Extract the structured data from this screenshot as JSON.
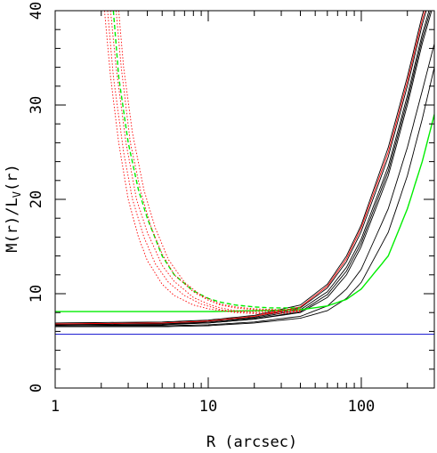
{
  "chart_data": {
    "type": "line",
    "title": "",
    "xlabel": "R (arcsec)",
    "ylabel": "M(r)/L_V(r)",
    "ylabel_parts": {
      "main": "M(r)/L",
      "sub": "V",
      "tail": "(r)"
    },
    "xscale": "log",
    "xlim": [
      1,
      300
    ],
    "ylim": [
      0,
      40
    ],
    "grid": false,
    "legend": "none",
    "x_ticks": [
      {
        "value": 1,
        "label": "1"
      },
      {
        "value": 10,
        "label": "10"
      },
      {
        "value": 100,
        "label": "100"
      }
    ],
    "y_ticks": [
      {
        "value": 0,
        "label": "0"
      },
      {
        "value": 10,
        "label": "10"
      },
      {
        "value": 20,
        "label": "20"
      },
      {
        "value": 30,
        "label": "30"
      },
      {
        "value": 40,
        "label": "40"
      }
    ],
    "series": [
      {
        "color": "#000000",
        "style": "solid",
        "x": [
          1,
          5,
          10,
          20,
          40,
          60,
          80,
          100,
          150,
          200,
          250,
          300
        ],
        "y": [
          6.6,
          6.7,
          6.9,
          7.3,
          8.0,
          9.6,
          12.0,
          15.0,
          22.5,
          30.0,
          36.5,
          41.0
        ]
      },
      {
        "color": "#000000",
        "style": "solid",
        "x": [
          1,
          5,
          10,
          20,
          40,
          60,
          80,
          100,
          150,
          200,
          250,
          300
        ],
        "y": [
          6.7,
          6.8,
          7.0,
          7.4,
          8.3,
          10.2,
          12.8,
          15.8,
          23.5,
          31.0,
          37.5,
          42.0
        ]
      },
      {
        "color": "#000000",
        "style": "solid",
        "x": [
          1,
          5,
          10,
          20,
          40,
          60,
          80,
          100,
          150,
          200,
          250,
          300
        ],
        "y": [
          6.8,
          6.9,
          7.1,
          7.5,
          8.5,
          10.6,
          13.4,
          16.6,
          24.5,
          32.0,
          38.5,
          43.0
        ]
      },
      {
        "color": "#000000",
        "style": "solid",
        "x": [
          1,
          5,
          10,
          20,
          40,
          60,
          80,
          100,
          150,
          200,
          250,
          300
        ],
        "y": [
          6.9,
          7.0,
          7.2,
          7.7,
          8.8,
          11.0,
          14.0,
          17.3,
          25.5,
          33.0,
          39.5,
          44.0
        ]
      },
      {
        "color": "#000000",
        "style": "solid",
        "x": [
          1,
          5,
          10,
          20,
          40,
          60,
          80,
          100,
          150,
          200,
          250,
          300
        ],
        "y": [
          6.6,
          6.6,
          6.7,
          7.0,
          7.6,
          8.7,
          10.5,
          12.6,
          19.0,
          25.5,
          31.5,
          36.5
        ]
      },
      {
        "color": "#000000",
        "style": "solid",
        "x": [
          1,
          5,
          10,
          20,
          40,
          60,
          80,
          100,
          150,
          200,
          250,
          300
        ],
        "y": [
          6.5,
          6.5,
          6.6,
          6.9,
          7.4,
          8.2,
          9.5,
          11.2,
          16.5,
          22.5,
          28.5,
          34.0
        ]
      },
      {
        "color": "#000000",
        "style": "solid",
        "x": [
          1,
          5,
          10,
          20,
          40,
          60,
          80,
          100,
          150,
          200,
          250,
          300
        ],
        "y": [
          6.7,
          6.8,
          6.9,
          7.3,
          8.1,
          9.9,
          12.4,
          15.4,
          23.0,
          30.5,
          37.0,
          41.5
        ]
      },
      {
        "color": "#ff0000",
        "style": "solid",
        "x": [
          1,
          5,
          10,
          20,
          40,
          60,
          80,
          100,
          150,
          200,
          250,
          300
        ],
        "y": [
          6.8,
          6.9,
          7.1,
          7.6,
          8.6,
          10.8,
          13.7,
          17.0,
          25.0,
          32.5,
          39.0,
          43.5
        ]
      },
      {
        "color": "#00ee00",
        "style": "solid",
        "x": [
          1,
          10,
          20,
          40,
          60,
          80,
          100,
          150,
          200,
          250,
          300
        ],
        "y": [
          8.1,
          8.1,
          8.2,
          8.3,
          8.7,
          9.4,
          10.5,
          14.0,
          19.0,
          24.0,
          29.0
        ]
      },
      {
        "color": "#00ee00",
        "style": "dashed",
        "x": [
          2.4,
          2.6,
          3,
          3.5,
          4,
          5,
          6,
          8,
          10,
          12,
          15,
          20,
          25,
          30,
          40
        ],
        "y": [
          40,
          33,
          26,
          21,
          18,
          14,
          12,
          10.3,
          9.5,
          9.1,
          8.8,
          8.6,
          8.5,
          8.5,
          8.5
        ]
      },
      {
        "color": "#ff0000",
        "style": "dotted",
        "x": [
          2.1,
          2.3,
          2.6,
          3,
          3.5,
          4,
          5,
          6,
          8,
          10,
          15,
          20,
          30,
          40
        ],
        "y": [
          40,
          33,
          26,
          20,
          16,
          13.5,
          11,
          9.8,
          8.8,
          8.4,
          8.0,
          7.9,
          7.9,
          8.1
        ]
      },
      {
        "color": "#ff0000",
        "style": "dotted",
        "x": [
          2.2,
          2.4,
          2.8,
          3.2,
          3.8,
          4.5,
          5.5,
          7,
          9,
          12,
          15,
          20,
          30,
          40
        ],
        "y": [
          40,
          33,
          25,
          20,
          16,
          13.2,
          11.2,
          9.8,
          8.9,
          8.3,
          8.1,
          8.0,
          8.0,
          8.2
        ]
      },
      {
        "color": "#ff0000",
        "style": "dotted",
        "x": [
          2.3,
          2.5,
          2.9,
          3.4,
          4,
          5,
          6,
          8,
          10,
          12,
          15,
          20,
          30,
          40
        ],
        "y": [
          40,
          34,
          26,
          20,
          16.5,
          13,
          11.3,
          9.6,
          8.9,
          8.5,
          8.2,
          8.1,
          8.1,
          8.2
        ]
      },
      {
        "color": "#ff0000",
        "style": "dotted",
        "x": [
          2.5,
          2.7,
          3.1,
          3.6,
          4.2,
          5,
          6,
          8,
          10,
          12,
          15,
          20,
          30,
          40
        ],
        "y": [
          40,
          34,
          26,
          21,
          17.2,
          14.2,
          12,
          10.2,
          9.3,
          8.8,
          8.5,
          8.3,
          8.2,
          8.3
        ]
      },
      {
        "color": "#ff0000",
        "style": "dotted",
        "x": [
          2.6,
          2.8,
          3.2,
          3.8,
          4.5,
          5.5,
          7,
          9,
          12,
          15,
          20,
          30,
          40
        ],
        "y": [
          40,
          34,
          27,
          21,
          17,
          13.6,
          11.2,
          9.8,
          8.9,
          8.6,
          8.4,
          8.3,
          8.4
        ]
      },
      {
        "color": "#0000cc",
        "style": "solid",
        "x": [
          1,
          300
        ],
        "y": [
          5.7,
          5.7
        ]
      }
    ]
  }
}
